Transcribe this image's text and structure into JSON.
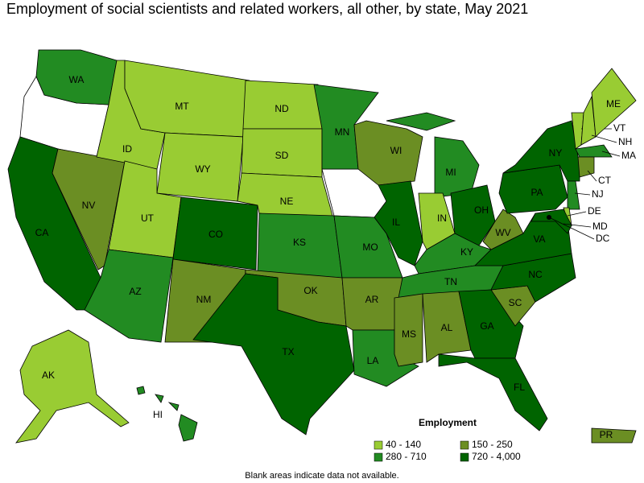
{
  "title": "Employment of social scientists and related workers, all other, by state, May 2021",
  "legend": {
    "title": "Employment",
    "items": [
      {
        "label": "40 - 140",
        "color": "#99cc33"
      },
      {
        "label": "150 - 250",
        "color": "#6b8e23"
      },
      {
        "label": "280 - 710",
        "color": "#228b22"
      },
      {
        "label": "720 - 4,000",
        "color": "#006400"
      }
    ]
  },
  "footnote": "Blank areas indicate data not available.",
  "states": [
    {
      "abbr": "WA",
      "bin": 2
    },
    {
      "abbr": "CA",
      "bin": 3
    },
    {
      "abbr": "NV",
      "bin": 1
    },
    {
      "abbr": "ID",
      "bin": 0
    },
    {
      "abbr": "MT",
      "bin": 0
    },
    {
      "abbr": "WY",
      "bin": 0
    },
    {
      "abbr": "UT",
      "bin": 0
    },
    {
      "abbr": "AZ",
      "bin": 2
    },
    {
      "abbr": "CO",
      "bin": 3
    },
    {
      "abbr": "NM",
      "bin": 1
    },
    {
      "abbr": "ND",
      "bin": 0
    },
    {
      "abbr": "SD",
      "bin": 0
    },
    {
      "abbr": "NE",
      "bin": 0
    },
    {
      "abbr": "KS",
      "bin": 2
    },
    {
      "abbr": "OK",
      "bin": 1
    },
    {
      "abbr": "TX",
      "bin": 3
    },
    {
      "abbr": "MN",
      "bin": 2
    },
    {
      "abbr": "MO",
      "bin": 2
    },
    {
      "abbr": "AR",
      "bin": 1
    },
    {
      "abbr": "LA",
      "bin": 2
    },
    {
      "abbr": "WI",
      "bin": 1
    },
    {
      "abbr": "IL",
      "bin": 3
    },
    {
      "abbr": "MI",
      "bin": 2
    },
    {
      "abbr": "IN",
      "bin": 0
    },
    {
      "abbr": "OH",
      "bin": 3
    },
    {
      "abbr": "KY",
      "bin": 2
    },
    {
      "abbr": "TN",
      "bin": 2
    },
    {
      "abbr": "MS",
      "bin": 1
    },
    {
      "abbr": "AL",
      "bin": 1
    },
    {
      "abbr": "GA",
      "bin": 3
    },
    {
      "abbr": "FL",
      "bin": 3
    },
    {
      "abbr": "SC",
      "bin": 1
    },
    {
      "abbr": "NC",
      "bin": 3
    },
    {
      "abbr": "VA",
      "bin": 3
    },
    {
      "abbr": "WV",
      "bin": 1
    },
    {
      "abbr": "PA",
      "bin": 3
    },
    {
      "abbr": "NY",
      "bin": 3
    },
    {
      "abbr": "VT",
      "bin": 0
    },
    {
      "abbr": "NH",
      "bin": 0
    },
    {
      "abbr": "ME",
      "bin": 0
    },
    {
      "abbr": "MA",
      "bin": 2
    },
    {
      "abbr": "CT",
      "bin": 1
    },
    {
      "abbr": "NJ",
      "bin": 2
    },
    {
      "abbr": "DE",
      "bin": 0
    },
    {
      "abbr": "MD",
      "bin": 3
    },
    {
      "abbr": "DC",
      "bin": 3
    },
    {
      "abbr": "AK",
      "bin": 0
    },
    {
      "abbr": "HI",
      "bin": 2
    },
    {
      "abbr": "PR",
      "bin": 1
    }
  ]
}
